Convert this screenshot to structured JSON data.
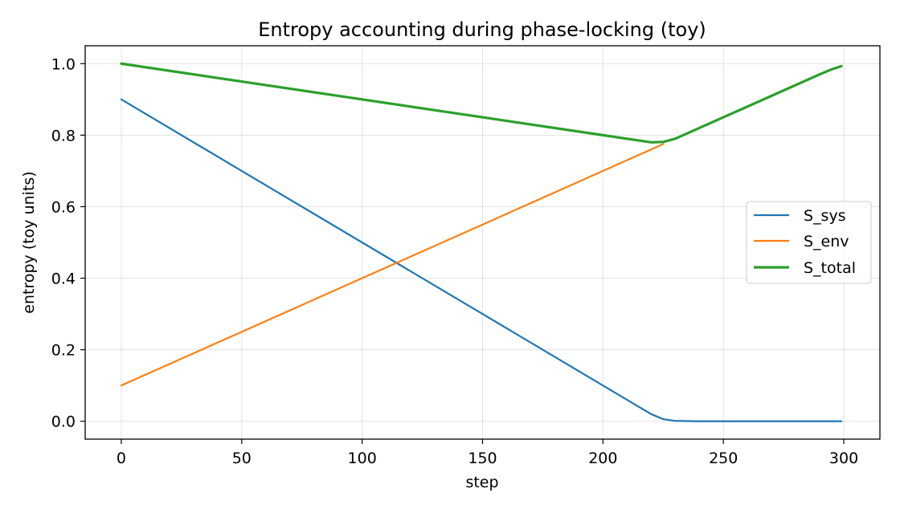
{
  "chart_data": {
    "type": "line",
    "title": "Entropy accounting during phase-locking (toy)",
    "xlabel": "step",
    "ylabel": "entropy (toy units)",
    "xlim": [
      -15,
      315
    ],
    "ylim": [
      -0.05,
      1.05
    ],
    "xticks": [
      0,
      50,
      100,
      150,
      200,
      250,
      300
    ],
    "xtick_labels": [
      "0",
      "50",
      "100",
      "150",
      "200",
      "250",
      "300"
    ],
    "yticks": [
      0.0,
      0.2,
      0.4,
      0.6,
      0.8,
      1.0
    ],
    "ytick_labels": [
      "0.0",
      "0.2",
      "0.4",
      "0.6",
      "0.8",
      "1.0"
    ],
    "grid": true,
    "legend_position": "center-right",
    "series": [
      {
        "name": "S_sys",
        "color": "#1f77b4",
        "x": [
          0,
          50,
          100,
          150,
          200,
          215,
          220,
          225,
          230,
          240,
          260,
          280,
          299
        ],
        "y": [
          0.9,
          0.7,
          0.5,
          0.3,
          0.1,
          0.04,
          0.02,
          0.006,
          0.001,
          0.0,
          0.0,
          0.0,
          0.0
        ]
      },
      {
        "name": "S_env",
        "color": "#ff7f0e",
        "x": [
          0,
          50,
          100,
          150,
          200,
          225
        ],
        "y": [
          0.1,
          0.25,
          0.4,
          0.55,
          0.7,
          0.775
        ]
      },
      {
        "name": "S_total",
        "color": "#2ca02c",
        "x": [
          0,
          50,
          100,
          150,
          200,
          215,
          220,
          225,
          230,
          240,
          250,
          260,
          270,
          280,
          290,
          295,
          299
        ],
        "y": [
          1.0,
          0.95,
          0.9,
          0.85,
          0.8,
          0.785,
          0.78,
          0.781,
          0.79,
          0.82,
          0.85,
          0.88,
          0.91,
          0.94,
          0.97,
          0.984,
          0.993
        ]
      }
    ]
  }
}
